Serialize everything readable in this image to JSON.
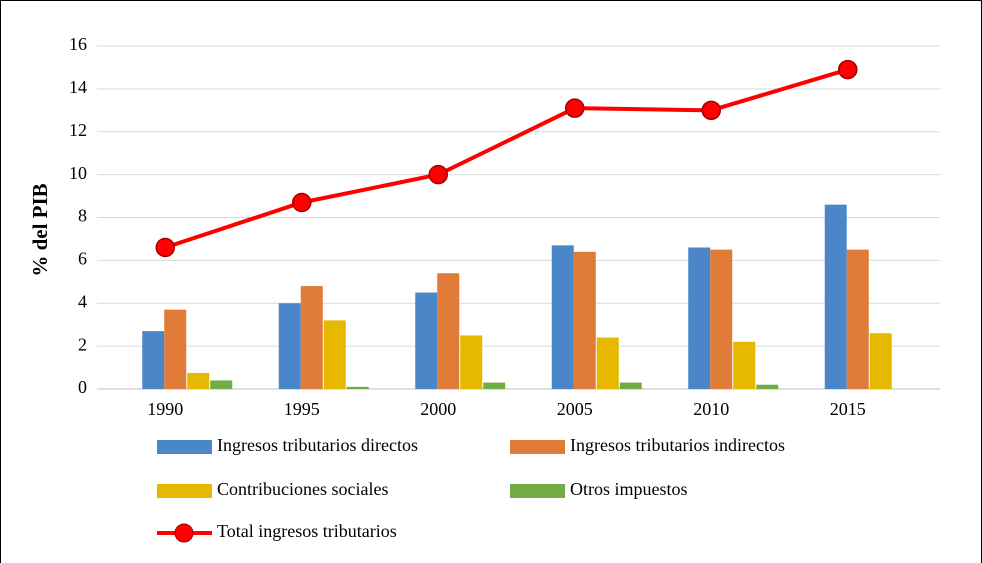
{
  "chart_data": {
    "type": "bar",
    "ylabel": "% del PIB",
    "categories": [
      "1990",
      "1995",
      "2000",
      "2005",
      "2010",
      "2015"
    ],
    "series": [
      {
        "name": "Ingresos tributarios directos",
        "color": "#4a86c8",
        "values": [
          2.7,
          4.0,
          4.5,
          6.7,
          6.6,
          8.6
        ]
      },
      {
        "name": "Ingresos tributarios indirectos",
        "color": "#e07b39",
        "values": [
          3.7,
          4.8,
          5.4,
          6.4,
          6.5,
          6.5
        ]
      },
      {
        "name": "Contribuciones sociales",
        "color": "#e6b800",
        "values": [
          0.75,
          3.2,
          2.5,
          2.4,
          2.2,
          2.6
        ]
      },
      {
        "name": "Otros impuestos",
        "color": "#70ad47",
        "values": [
          0.4,
          0.1,
          0.3,
          0.3,
          0.2,
          0
        ]
      },
      {
        "name": "Total ingresos tributarios",
        "type": "line",
        "color": "#ff0000",
        "values": [
          6.6,
          8.7,
          10.0,
          13.1,
          13.0,
          14.9
        ]
      }
    ],
    "ylim": [
      0,
      16
    ],
    "yticks": [
      0,
      2,
      4,
      6,
      8,
      10,
      12,
      14,
      16
    ],
    "grid": true,
    "legend": "bottom"
  }
}
